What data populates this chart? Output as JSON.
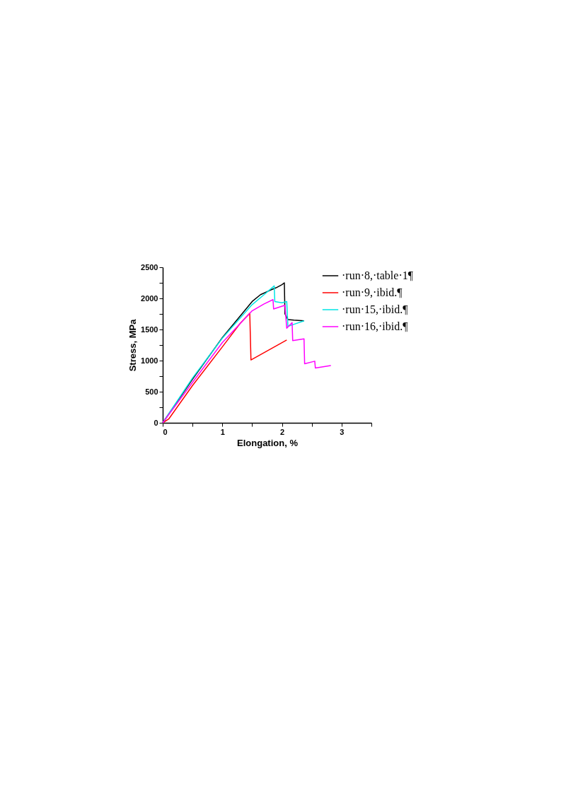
{
  "chart_data": {
    "type": "line",
    "xlabel": "Elongation, %",
    "ylabel": "Stress, MPa",
    "xlim": [
      0,
      3.5
    ],
    "ylim": [
      0,
      2500
    ],
    "xticks": [
      0,
      {
        "value": 0.5,
        "label": null
      },
      1,
      {
        "value": 1.5,
        "label": null
      },
      2,
      {
        "value": 2.5,
        "label": null
      },
      3,
      {
        "value": 3.5,
        "label": null
      }
    ],
    "yticks": [
      0,
      {
        "value": 250,
        "label": null
      },
      500,
      {
        "value": 750,
        "label": null
      },
      1000,
      {
        "value": 1250,
        "label": null
      },
      1500,
      {
        "value": 1750,
        "label": null
      },
      2000,
      {
        "value": 2250,
        "label": null
      },
      2500
    ],
    "grid": false,
    "legend": "top right",
    "marker": "none",
    "line_style": "solid",
    "series": [
      {
        "name": "·run·8,·table·1¶",
        "color": "#000000",
        "x": [
          0,
          0.5,
          1,
          1.5,
          1.64,
          1.8,
          1.9,
          2.0,
          2.04,
          2.05,
          2.1,
          2.2,
          2.37
        ],
        "values": [
          0,
          700,
          1370,
          1950,
          2060,
          2130,
          2170,
          2220,
          2250,
          1750,
          1660,
          1650,
          1640
        ]
      },
      {
        "name": "·run·9,·ibid.¶",
        "color": "#ff0000",
        "x": [
          0,
          0.1,
          0.3,
          0.5,
          1,
          1.3,
          1.46,
          1.48,
          2.08
        ],
        "values": [
          0,
          60,
          330,
          600,
          1220,
          1600,
          1760,
          1010,
          1330
        ]
      },
      {
        "name": "·run·15,·ibid.¶",
        "color": "#00e5e5",
        "x": [
          0,
          0.5,
          1,
          1.5,
          1.7,
          1.87,
          1.88,
          2.0,
          2.08,
          2.1,
          2.37
        ],
        "values": [
          0,
          720,
          1360,
          1900,
          2060,
          2200,
          1950,
          1930,
          1950,
          1550,
          1640
        ]
      },
      {
        "name": "·run·16,·ibid.¶",
        "color": "#ff00ff",
        "x": [
          0,
          0.5,
          1,
          1.5,
          1.7,
          1.85,
          1.86,
          2.05,
          2.08,
          2.17,
          2.18,
          2.37,
          2.38,
          2.55,
          2.56,
          2.82
        ],
        "values": [
          0,
          650,
          1290,
          1800,
          1910,
          1980,
          1830,
          1890,
          1520,
          1610,
          1320,
          1350,
          950,
          990,
          880,
          920
        ]
      }
    ]
  }
}
